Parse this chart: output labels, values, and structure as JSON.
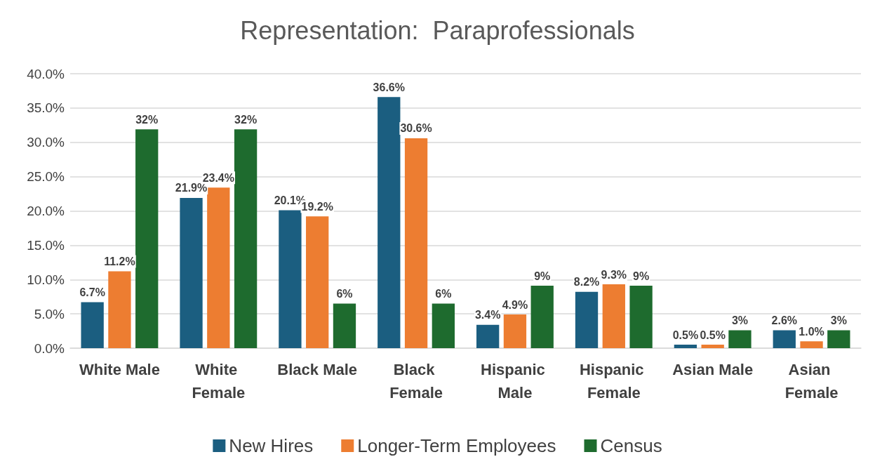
{
  "chart_data": {
    "type": "bar",
    "title": "Representation:  Paraprofessionals",
    "categories": [
      "White Male",
      "White Female",
      "Black Male",
      "Black Female",
      "Hispanic Male",
      "Hispanic Female",
      "Asian Male",
      "Asian Female"
    ],
    "series": [
      {
        "name": "New Hires",
        "color": "#1b5e80",
        "values": [
          6.7,
          21.9,
          20.1,
          36.6,
          3.4,
          8.2,
          0.5,
          2.6
        ],
        "value_labels": [
          "6.7%",
          "21.9%",
          "20.1%",
          "36.6%",
          "3.4%",
          "8.2%",
          "0.5%",
          "2.6%"
        ]
      },
      {
        "name": "Longer-Term Employees",
        "color": "#ed7d31",
        "values": [
          11.2,
          23.4,
          19.2,
          30.6,
          4.9,
          9.3,
          0.5,
          1.0
        ],
        "value_labels": [
          "11.2%",
          "23.4%",
          "19.2%",
          "30.6%",
          "4.9%",
          "9.3%",
          "0.5%",
          "1.0%"
        ]
      },
      {
        "name": "Census",
        "color": "#1e6b2e",
        "values": [
          31.9,
          31.9,
          6.5,
          6.5,
          9.1,
          9.1,
          2.6,
          2.6
        ],
        "value_labels": [
          "32%",
          "32%",
          "6%",
          "6%",
          "9%",
          "9%",
          "3%",
          "3%"
        ]
      }
    ],
    "ylim": [
      0,
      40
    ],
    "yticks": [
      {
        "value": 0,
        "label": "0.0%"
      },
      {
        "value": 5,
        "label": "5.0%"
      },
      {
        "value": 10,
        "label": "10.0%"
      },
      {
        "value": 15,
        "label": "15.0%"
      },
      {
        "value": 20,
        "label": "20.0%"
      },
      {
        "value": 25,
        "label": "25.0%"
      },
      {
        "value": 30,
        "label": "30.0%"
      },
      {
        "value": 35,
        "label": "35.0%"
      },
      {
        "value": 40,
        "label": "40.0%"
      }
    ],
    "grid": "y",
    "legend": "bottom"
  }
}
